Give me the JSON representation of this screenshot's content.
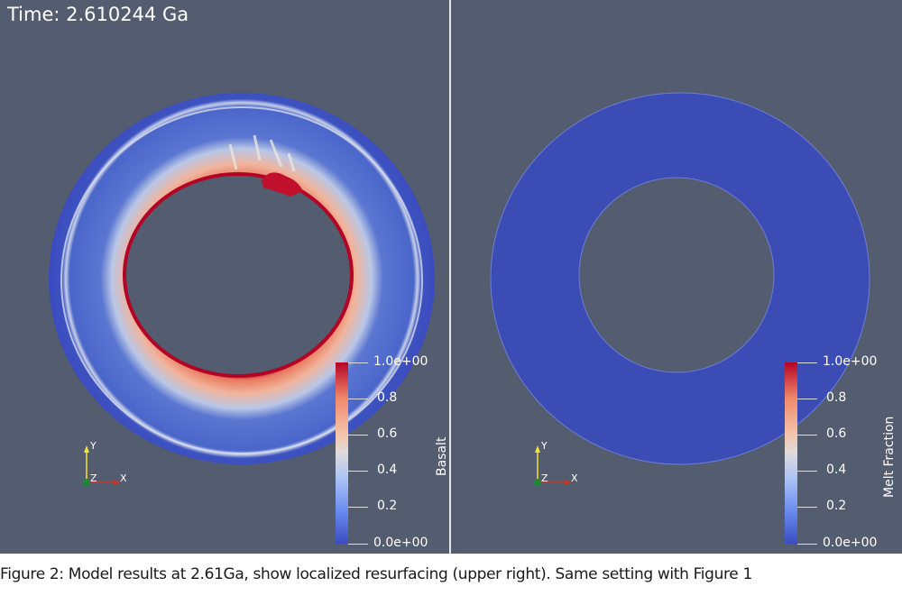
{
  "time_label": "Time: 2.610244 Ga",
  "caption": "Figure 2: Model results at 2.61Ga, show localized resurfacing (upper right). Same setting with Figure 1",
  "colors": {
    "background": "#545c6f",
    "low": "#3b4cc0",
    "mid": "#dddcdc",
    "high": "#b40426"
  },
  "left_panel": {
    "field": "Basalt",
    "colorbar_ticks": [
      "1.0e+00",
      "0.8",
      "0.6",
      "0.4",
      "0.2",
      "0.0e+00"
    ],
    "axes": {
      "y": "Y",
      "z": "Z",
      "x": "X"
    }
  },
  "right_panel": {
    "field": "Melt Fraction",
    "colorbar_ticks": [
      "1.0e+00",
      "0.8",
      "0.6",
      "0.4",
      "0.2",
      "0.0e+00"
    ],
    "axes": {
      "y": "Y",
      "z": "Z",
      "x": "X"
    }
  }
}
